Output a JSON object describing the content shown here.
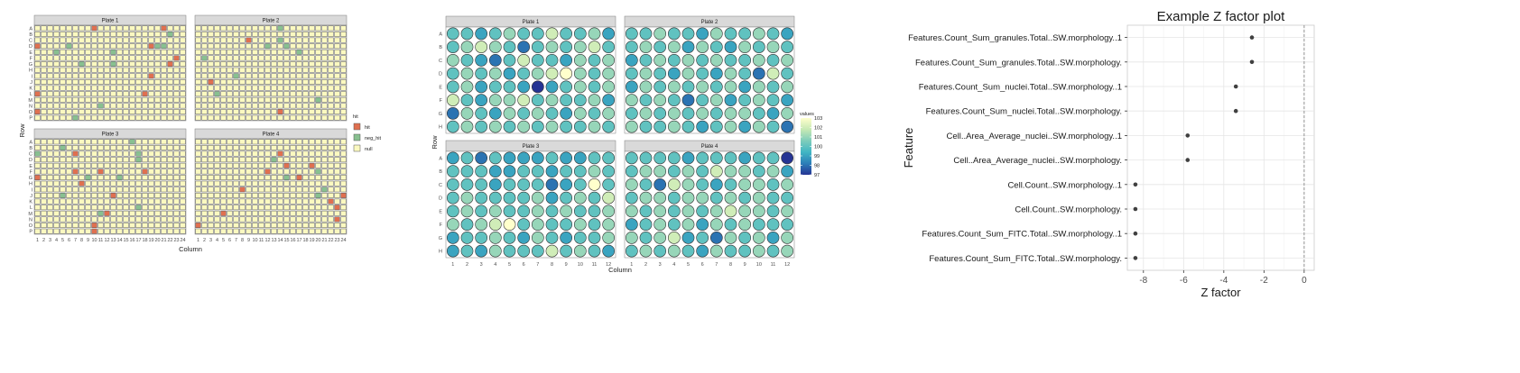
{
  "chart_data": [
    {
      "type": "heatmap",
      "title": "",
      "xlabel": "Column",
      "ylabel": "Row",
      "panels": [
        "Plate 1",
        "Plate 2",
        "Plate 3",
        "Plate 4"
      ],
      "rows": [
        "A",
        "B",
        "C",
        "D",
        "E",
        "F",
        "G",
        "H",
        "I",
        "J",
        "K",
        "L",
        "M",
        "N",
        "O",
        "P"
      ],
      "columns": [
        "1",
        "2",
        "3",
        "4",
        "5",
        "6",
        "7",
        "8",
        "9",
        "10",
        "11",
        "12",
        "13",
        "14",
        "15",
        "16",
        "17",
        "18",
        "19",
        "20",
        "21",
        "22",
        "23",
        "24"
      ],
      "legend_title": "hit",
      "legend_position": "right",
      "categories": [
        {
          "name": "hit",
          "color": "#e07050"
        },
        {
          "name": "neg_hit",
          "color": "#88c090"
        },
        {
          "name": "null",
          "color": "#fbf9c0"
        }
      ],
      "cells": [
        {
          "plate": "Plate 1",
          "row": "A",
          "col": 10,
          "value": "hit"
        },
        {
          "plate": "Plate 1",
          "row": "A",
          "col": 21,
          "value": "hit"
        },
        {
          "plate": "Plate 1",
          "row": "B",
          "col": 22,
          "value": "neg_hit"
        },
        {
          "plate": "Plate 1",
          "row": "D",
          "col": 1,
          "value": "hit"
        },
        {
          "plate": "Plate 1",
          "row": "D",
          "col": 6,
          "value": "neg_hit"
        },
        {
          "plate": "Plate 1",
          "row": "D",
          "col": 19,
          "value": "hit"
        },
        {
          "plate": "Plate 1",
          "row": "D",
          "col": 20,
          "value": "neg_hit"
        },
        {
          "plate": "Plate 1",
          "row": "D",
          "col": 21,
          "value": "neg_hit"
        },
        {
          "plate": "Plate 1",
          "row": "E",
          "col": 4,
          "value": "neg_hit"
        },
        {
          "plate": "Plate 1",
          "row": "E",
          "col": 13,
          "value": "neg_hit"
        },
        {
          "plate": "Plate 1",
          "row": "F",
          "col": 23,
          "value": "hit"
        },
        {
          "plate": "Plate 1",
          "row": "G",
          "col": 8,
          "value": "neg_hit"
        },
        {
          "plate": "Plate 1",
          "row": "G",
          "col": 13,
          "value": "neg_hit"
        },
        {
          "plate": "Plate 1",
          "row": "G",
          "col": 22,
          "value": "hit"
        },
        {
          "plate": "Plate 1",
          "row": "I",
          "col": 19,
          "value": "hit"
        },
        {
          "plate": "Plate 1",
          "row": "L",
          "col": 1,
          "value": "hit"
        },
        {
          "plate": "Plate 1",
          "row": "L",
          "col": 18,
          "value": "hit"
        },
        {
          "plate": "Plate 1",
          "row": "N",
          "col": 11,
          "value": "neg_hit"
        },
        {
          "plate": "Plate 1",
          "row": "O",
          "col": 1,
          "value": "hit"
        },
        {
          "plate": "Plate 1",
          "row": "P",
          "col": 7,
          "value": "neg_hit"
        },
        {
          "plate": "Plate 2",
          "row": "A",
          "col": 14,
          "value": "neg_hit"
        },
        {
          "plate": "Plate 2",
          "row": "C",
          "col": 9,
          "value": "hit"
        },
        {
          "plate": "Plate 2",
          "row": "C",
          "col": 14,
          "value": "neg_hit"
        },
        {
          "plate": "Plate 2",
          "row": "D",
          "col": 12,
          "value": "neg_hit"
        },
        {
          "plate": "Plate 2",
          "row": "D",
          "col": 15,
          "value": "neg_hit"
        },
        {
          "plate": "Plate 2",
          "row": "E",
          "col": 17,
          "value": "neg_hit"
        },
        {
          "plate": "Plate 2",
          "row": "F",
          "col": 2,
          "value": "neg_hit"
        },
        {
          "plate": "Plate 2",
          "row": "I",
          "col": 7,
          "value": "neg_hit"
        },
        {
          "plate": "Plate 2",
          "row": "J",
          "col": 3,
          "value": "hit"
        },
        {
          "plate": "Plate 2",
          "row": "L",
          "col": 4,
          "value": "neg_hit"
        },
        {
          "plate": "Plate 2",
          "row": "M",
          "col": 20,
          "value": "neg_hit"
        },
        {
          "plate": "Plate 2",
          "row": "O",
          "col": 14,
          "value": "hit"
        },
        {
          "plate": "Plate 3",
          "row": "A",
          "col": 16,
          "value": "neg_hit"
        },
        {
          "plate": "Plate 3",
          "row": "B",
          "col": 5,
          "value": "neg_hit"
        },
        {
          "plate": "Plate 3",
          "row": "C",
          "col": 1,
          "value": "neg_hit"
        },
        {
          "plate": "Plate 3",
          "row": "C",
          "col": 7,
          "value": "hit"
        },
        {
          "plate": "Plate 3",
          "row": "C",
          "col": 17,
          "value": "neg_hit"
        },
        {
          "plate": "Plate 3",
          "row": "D",
          "col": 17,
          "value": "neg_hit"
        },
        {
          "plate": "Plate 3",
          "row": "F",
          "col": 7,
          "value": "hit"
        },
        {
          "plate": "Plate 3",
          "row": "F",
          "col": 11,
          "value": "hit"
        },
        {
          "plate": "Plate 3",
          "row": "F",
          "col": 18,
          "value": "hit"
        },
        {
          "plate": "Plate 3",
          "row": "G",
          "col": 1,
          "value": "hit"
        },
        {
          "plate": "Plate 3",
          "row": "G",
          "col": 9,
          "value": "neg_hit"
        },
        {
          "plate": "Plate 3",
          "row": "G",
          "col": 14,
          "value": "neg_hit"
        },
        {
          "plate": "Plate 3",
          "row": "H",
          "col": 8,
          "value": "hit"
        },
        {
          "plate": "Plate 3",
          "row": "J",
          "col": 5,
          "value": "neg_hit"
        },
        {
          "plate": "Plate 3",
          "row": "J",
          "col": 13,
          "value": "hit"
        },
        {
          "plate": "Plate 3",
          "row": "L",
          "col": 17,
          "value": "neg_hit"
        },
        {
          "plate": "Plate 3",
          "row": "M",
          "col": 11,
          "value": "neg_hit"
        },
        {
          "plate": "Plate 3",
          "row": "M",
          "col": 12,
          "value": "hit"
        },
        {
          "plate": "Plate 3",
          "row": "O",
          "col": 10,
          "value": "hit"
        },
        {
          "plate": "Plate 3",
          "row": "P",
          "col": 10,
          "value": "hit"
        },
        {
          "plate": "Plate 4",
          "row": "C",
          "col": 14,
          "value": "hit"
        },
        {
          "plate": "Plate 4",
          "row": "D",
          "col": 13,
          "value": "neg_hit"
        },
        {
          "plate": "Plate 4",
          "row": "E",
          "col": 15,
          "value": "hit"
        },
        {
          "plate": "Plate 4",
          "row": "E",
          "col": 19,
          "value": "hit"
        },
        {
          "plate": "Plate 4",
          "row": "F",
          "col": 12,
          "value": "hit"
        },
        {
          "plate": "Plate 4",
          "row": "F",
          "col": 20,
          "value": "neg_hit"
        },
        {
          "plate": "Plate 4",
          "row": "G",
          "col": 15,
          "value": "neg_hit"
        },
        {
          "plate": "Plate 4",
          "row": "G",
          "col": 17,
          "value": "hit"
        },
        {
          "plate": "Plate 4",
          "row": "I",
          "col": 8,
          "value": "hit"
        },
        {
          "plate": "Plate 4",
          "row": "I",
          "col": 21,
          "value": "neg_hit"
        },
        {
          "plate": "Plate 4",
          "row": "J",
          "col": 20,
          "value": "neg_hit"
        },
        {
          "plate": "Plate 4",
          "row": "J",
          "col": 24,
          "value": "hit"
        },
        {
          "plate": "Plate 4",
          "row": "K",
          "col": 22,
          "value": "hit"
        },
        {
          "plate": "Plate 4",
          "row": "L",
          "col": 23,
          "value": "hit"
        },
        {
          "plate": "Plate 4",
          "row": "M",
          "col": 5,
          "value": "hit"
        },
        {
          "plate": "Plate 4",
          "row": "N",
          "col": 23,
          "value": "hit"
        },
        {
          "plate": "Plate 4",
          "row": "O",
          "col": 1,
          "value": "hit"
        }
      ]
    },
    {
      "type": "heatmap",
      "title": "",
      "xlabel": "Column",
      "ylabel": "Row",
      "panels": [
        "Plate 1",
        "Plate 2",
        "Plate 3",
        "Plate 4"
      ],
      "rows": [
        "A",
        "B",
        "C",
        "D",
        "E",
        "F",
        "G",
        "H"
      ],
      "columns": [
        "1",
        "2",
        "3",
        "4",
        "5",
        "6",
        "7",
        "8",
        "9",
        "10",
        "11",
        "12"
      ],
      "legend_title": "values",
      "legend_position": "right",
      "legend_ticks": [
        103,
        102,
        101,
        100,
        99,
        98,
        97
      ],
      "color_scale": [
        "#253494",
        "#2c7fb8",
        "#41b6c4",
        "#7fcdbb",
        "#c7e9b4",
        "#ffffcc"
      ],
      "value_range": [
        97,
        103
      ],
      "values": {
        "Plate 1": [
          [
            100,
            100,
            99,
            100,
            101,
            100,
            100,
            102,
            100,
            100,
            101,
            99
          ],
          [
            100,
            101,
            102,
            101,
            100,
            98,
            100,
            101,
            100,
            101,
            102,
            100
          ],
          [
            101,
            100,
            99,
            98,
            100,
            102,
            100,
            100,
            99,
            101,
            100,
            101
          ],
          [
            100,
            101,
            100,
            101,
            99,
            100,
            101,
            102,
            103,
            101,
            100,
            101
          ],
          [
            100,
            101,
            99,
            100,
            100,
            99,
            97,
            99,
            100,
            101,
            100,
            101
          ],
          [
            102,
            100,
            99,
            101,
            101,
            102,
            100,
            101,
            100,
            100,
            101,
            99
          ],
          [
            98,
            101,
            100,
            99,
            101,
            100,
            101,
            100,
            99,
            101,
            100,
            101
          ],
          [
            100,
            101,
            100,
            101,
            100,
            101,
            100,
            101,
            100,
            100,
            101,
            100
          ]
        ],
        "Plate 2": [
          [
            100,
            100,
            101,
            100,
            100,
            99,
            101,
            100,
            100,
            101,
            100,
            99
          ],
          [
            100,
            101,
            100,
            101,
            99,
            101,
            100,
            99,
            101,
            100,
            101,
            100
          ],
          [
            99,
            100,
            101,
            100,
            101,
            100,
            101,
            100,
            100,
            101,
            100,
            101
          ],
          [
            100,
            101,
            100,
            99,
            101,
            100,
            99,
            101,
            100,
            98,
            102,
            100
          ],
          [
            99,
            101,
            100,
            101,
            100,
            101,
            100,
            101,
            99,
            101,
            100,
            101
          ],
          [
            101,
            100,
            101,
            100,
            98,
            100,
            101,
            99,
            100,
            101,
            100,
            99
          ],
          [
            100,
            101,
            100,
            101,
            100,
            101,
            100,
            101,
            101,
            100,
            99,
            101
          ],
          [
            101,
            100,
            100,
            101,
            100,
            99,
            100,
            101,
            99,
            101,
            100,
            98
          ]
        ],
        "Plate 3": [
          [
            99,
            100,
            98,
            100,
            99,
            99,
            99,
            100,
            99,
            99,
            100,
            100
          ],
          [
            100,
            100,
            100,
            99,
            99,
            100,
            100,
            99,
            100,
            100,
            101,
            100
          ],
          [
            100,
            100,
            100,
            99,
            100,
            100,
            100,
            98,
            99,
            100,
            103,
            100
          ],
          [
            100,
            101,
            100,
            100,
            100,
            100,
            101,
            99,
            100,
            101,
            100,
            102
          ],
          [
            100,
            101,
            100,
            101,
            100,
            100,
            101,
            100,
            101,
            100,
            100,
            101
          ],
          [
            101,
            100,
            101,
            102,
            103,
            100,
            101,
            100,
            100,
            101,
            100,
            101
          ],
          [
            99,
            100,
            100,
            101,
            100,
            99,
            101,
            100,
            99,
            100,
            100,
            101
          ],
          [
            99,
            100,
            99,
            101,
            100,
            100,
            100,
            102,
            100,
            101,
            100,
            99
          ]
        ],
        "Plate 4": [
          [
            100,
            100,
            100,
            100,
            99,
            100,
            100,
            100,
            99,
            100,
            100,
            97
          ],
          [
            100,
            101,
            101,
            100,
            101,
            100,
            102,
            101,
            101,
            100,
            101,
            99
          ],
          [
            101,
            100,
            98,
            102,
            101,
            100,
            99,
            100,
            101,
            101,
            100,
            101
          ],
          [
            100,
            101,
            101,
            100,
            101,
            101,
            100,
            101,
            100,
            101,
            100,
            100
          ],
          [
            101,
            100,
            101,
            100,
            101,
            100,
            101,
            102,
            101,
            101,
            100,
            101
          ],
          [
            99,
            100,
            101,
            100,
            101,
            99,
            101,
            100,
            101,
            100,
            100,
            100
          ],
          [
            101,
            100,
            101,
            102,
            99,
            100,
            98,
            101,
            100,
            101,
            99,
            101
          ],
          [
            100,
            101,
            100,
            101,
            100,
            99,
            101,
            100,
            100,
            101,
            100,
            101
          ]
        ]
      }
    },
    {
      "type": "scatter",
      "title": "Example Z factor plot",
      "xlabel": "Z factor",
      "ylabel": "Feature",
      "xlim": [
        -8.8,
        0.5
      ],
      "x_ticks": [
        -8,
        -6,
        -4,
        -2,
        0
      ],
      "reference_line": {
        "x": 0,
        "style": "dashed"
      },
      "grid": true,
      "categories": [
        "Features.Count_Sum_granules.Total..SW.morphology..1",
        "Features.Count_Sum_granules.Total..SW.morphology.",
        "Features.Count_Sum_nuclei.Total..SW.morphology..1",
        "Features.Count_Sum_nuclei.Total..SW.morphology.",
        "Cell..Area_Average_nuclei..SW.morphology..1",
        "Cell..Area_Average_nuclei..SW.morphology.",
        "Cell.Count..SW.morphology..1",
        "Cell.Count..SW.morphology.",
        "Features.Count_Sum_FITC.Total..SW.morphology..1",
        "Features.Count_Sum_FITC.Total..SW.morphology."
      ],
      "values": [
        -2.6,
        -2.6,
        -3.4,
        -3.4,
        -5.8,
        -5.8,
        -8.4,
        -8.4,
        -8.4,
        -8.4
      ]
    }
  ]
}
